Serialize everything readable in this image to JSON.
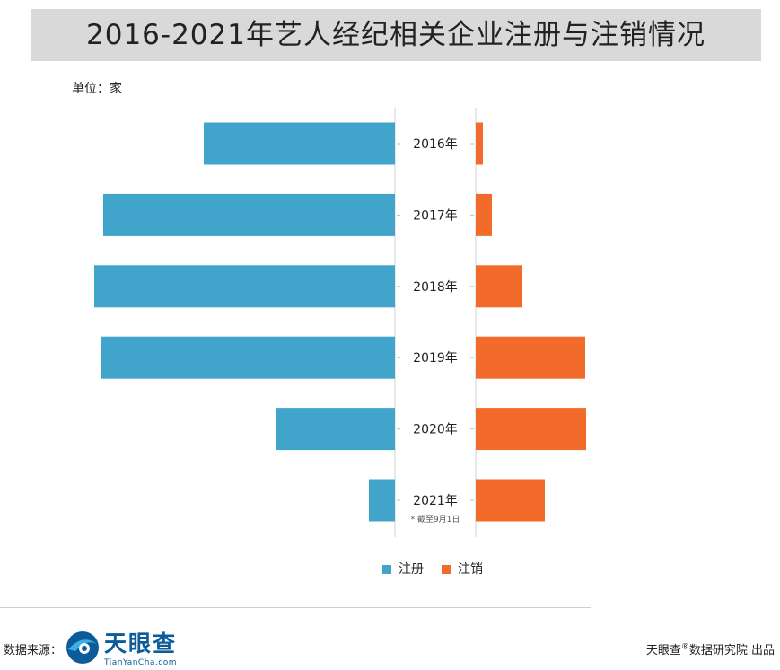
{
  "title": "2016-2021年艺人经纪相关企业注册与注销情况",
  "unit_label": "单位：家",
  "colors": {
    "register": "#41a5cb",
    "cancel": "#f26b2b",
    "title_band": "#d9d9d9"
  },
  "chart_data": {
    "type": "bar",
    "orientation": "horizontal-butterfly",
    "categories": [
      "2016年",
      "2017年",
      "2018年",
      "2019年",
      "2020年",
      "2021年"
    ],
    "category_notes": [
      "",
      "",
      "",
      "",
      "",
      "* 截至9月1日"
    ],
    "series": [
      {
        "name": "注册",
        "values": [
          213,
          325,
          335,
          328,
          133,
          29
        ]
      },
      {
        "name": "注销",
        "values": [
          8,
          18,
          52,
          122,
          123,
          77
        ]
      }
    ],
    "legend_position": "bottom-center",
    "grid": false
  },
  "footer": {
    "source_label": "数据来源：",
    "logo_name": "天眼查",
    "logo_url": "TianYanCha.com",
    "credit_main": "天眼查",
    "credit_mark": "®",
    "credit_rest": "数据研究院 出品"
  }
}
